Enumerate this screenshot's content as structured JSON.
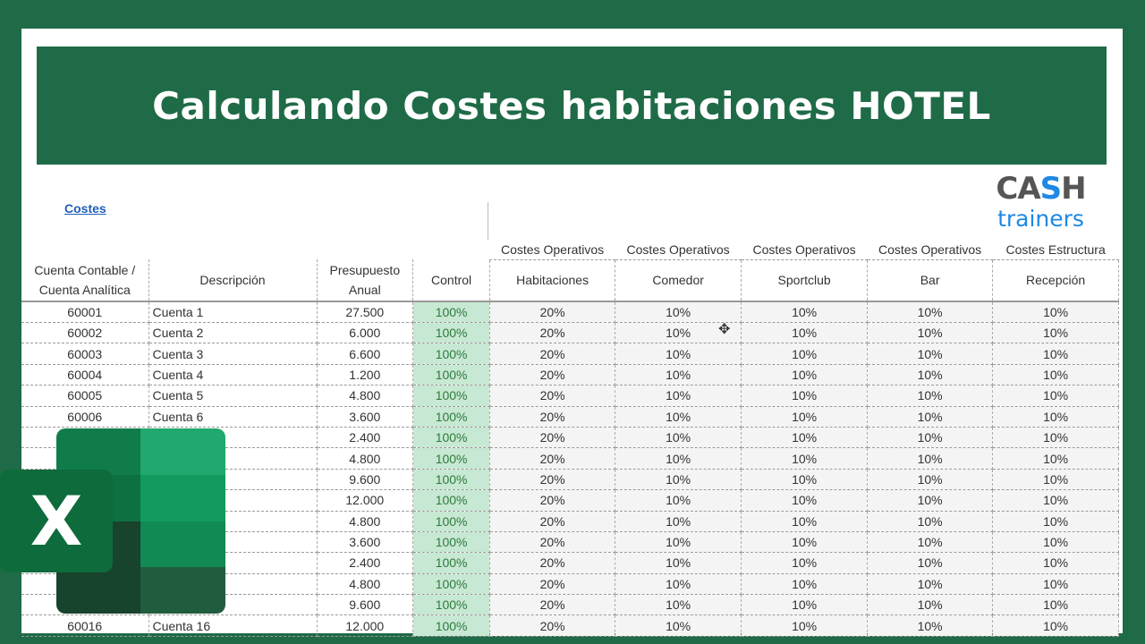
{
  "title": "Calculando Costes habitaciones HOTEL",
  "link": "Costes",
  "columns": {
    "cuenta": "Cuenta Contable / Cuenta Analítica",
    "descripcion": "Descripción",
    "presupuesto": "Presupuesto Anual",
    "control": "Control",
    "centers": [
      {
        "group": "Costes Operativos",
        "name": "Habitaciones"
      },
      {
        "group": "Costes Operativos",
        "name": "Comedor"
      },
      {
        "group": "Costes Operativos",
        "name": "Sportclub"
      },
      {
        "group": "Costes Operativos",
        "name": "Bar"
      },
      {
        "group": "Costes Estructura",
        "name": "Recepción"
      }
    ]
  },
  "rows": [
    {
      "cuenta": "60001",
      "desc": "Cuenta 1",
      "pres": "27.500",
      "control": "100%",
      "pcts": [
        "20%",
        "10%",
        "10%",
        "10%",
        "10%"
      ]
    },
    {
      "cuenta": "60002",
      "desc": "Cuenta 2",
      "pres": "6.000",
      "control": "100%",
      "pcts": [
        "20%",
        "10%",
        "10%",
        "10%",
        "10%"
      ]
    },
    {
      "cuenta": "60003",
      "desc": "Cuenta 3",
      "pres": "6.600",
      "control": "100%",
      "pcts": [
        "20%",
        "10%",
        "10%",
        "10%",
        "10%"
      ]
    },
    {
      "cuenta": "60004",
      "desc": "Cuenta 4",
      "pres": "1.200",
      "control": "100%",
      "pcts": [
        "20%",
        "10%",
        "10%",
        "10%",
        "10%"
      ]
    },
    {
      "cuenta": "60005",
      "desc": "Cuenta 5",
      "pres": "4.800",
      "control": "100%",
      "pcts": [
        "20%",
        "10%",
        "10%",
        "10%",
        "10%"
      ]
    },
    {
      "cuenta": "60006",
      "desc": "Cuenta 6",
      "pres": "3.600",
      "control": "100%",
      "pcts": [
        "20%",
        "10%",
        "10%",
        "10%",
        "10%"
      ]
    },
    {
      "cuenta": "",
      "desc": "",
      "pres": "2.400",
      "control": "100%",
      "pcts": [
        "20%",
        "10%",
        "10%",
        "10%",
        "10%"
      ]
    },
    {
      "cuenta": "",
      "desc": "",
      "pres": "4.800",
      "control": "100%",
      "pcts": [
        "20%",
        "10%",
        "10%",
        "10%",
        "10%"
      ]
    },
    {
      "cuenta": "",
      "desc": "",
      "pres": "9.600",
      "control": "100%",
      "pcts": [
        "20%",
        "10%",
        "10%",
        "10%",
        "10%"
      ]
    },
    {
      "cuenta": "",
      "desc": "",
      "pres": "12.000",
      "control": "100%",
      "pcts": [
        "20%",
        "10%",
        "10%",
        "10%",
        "10%"
      ]
    },
    {
      "cuenta": "",
      "desc": "",
      "pres": "4.800",
      "control": "100%",
      "pcts": [
        "20%",
        "10%",
        "10%",
        "10%",
        "10%"
      ]
    },
    {
      "cuenta": "",
      "desc": "",
      "pres": "3.600",
      "control": "100%",
      "pcts": [
        "20%",
        "10%",
        "10%",
        "10%",
        "10%"
      ]
    },
    {
      "cuenta": "",
      "desc": "",
      "pres": "2.400",
      "control": "100%",
      "pcts": [
        "20%",
        "10%",
        "10%",
        "10%",
        "10%"
      ]
    },
    {
      "cuenta": "",
      "desc": "",
      "pres": "4.800",
      "control": "100%",
      "pcts": [
        "20%",
        "10%",
        "10%",
        "10%",
        "10%"
      ]
    },
    {
      "cuenta": "",
      "desc": "",
      "pres": "9.600",
      "control": "100%",
      "pcts": [
        "20%",
        "10%",
        "10%",
        "10%",
        "10%"
      ]
    },
    {
      "cuenta": "60016",
      "desc": "Cuenta 16",
      "pres": "12.000",
      "control": "100%",
      "pcts": [
        "20%",
        "10%",
        "10%",
        "10%",
        "10%"
      ]
    }
  ],
  "logos": {
    "cash_a": "CA",
    "cash_s": "S",
    "cash_h": "H",
    "trainers": "trainers",
    "excel": "X"
  },
  "colors": {
    "brand_green": "#1f6b47",
    "control_fill": "#c7e8d2",
    "cash_blue": "#1e88e5"
  },
  "icons": {
    "cursor": "move-cursor-icon"
  }
}
